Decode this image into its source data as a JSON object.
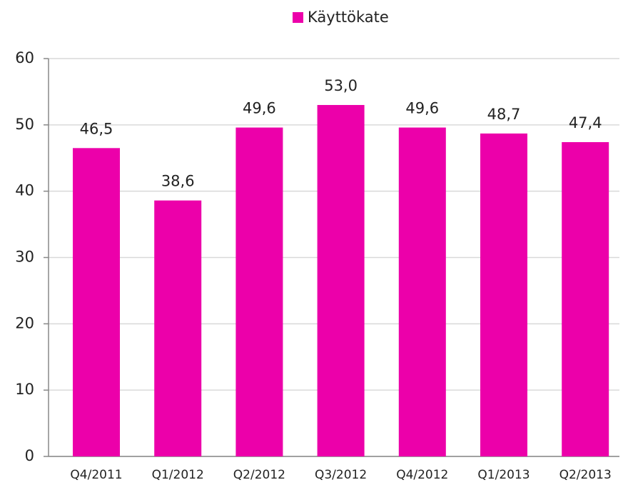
{
  "chart_data": {
    "type": "bar",
    "categories": [
      "Q4/2011",
      "Q1/2012",
      "Q2/2012",
      "Q3/2012",
      "Q4/2012",
      "Q1/2013",
      "Q2/2013"
    ],
    "series": [
      {
        "name": "Käyttökate",
        "color": "#ec00aa",
        "values": [
          46.5,
          38.6,
          49.6,
          53.0,
          49.6,
          48.7,
          47.4
        ],
        "value_labels": [
          "46,5",
          "38,6",
          "49,6",
          "53,0",
          "49,6",
          "48,7",
          "47,4"
        ]
      }
    ],
    "ylim": [
      0,
      60
    ],
    "yticks": [
      0,
      10,
      20,
      30,
      40,
      50,
      60
    ],
    "grid": true,
    "legend": "top"
  }
}
